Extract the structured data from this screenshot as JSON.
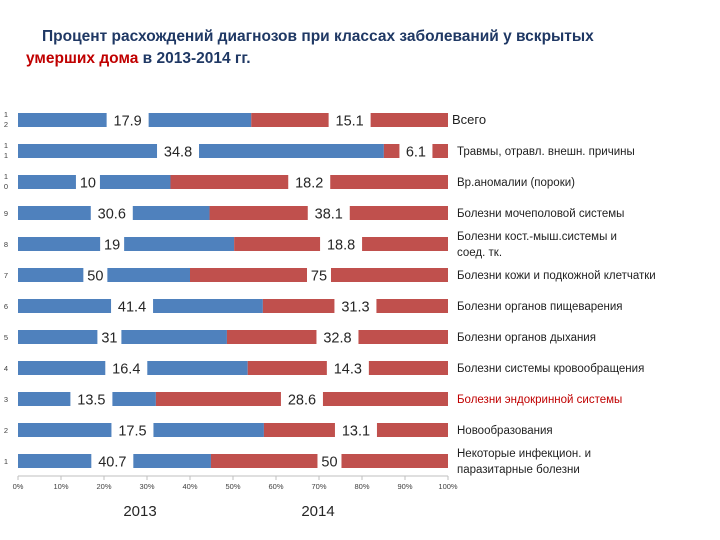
{
  "title": {
    "line1": "Процент расхождений диагнозов при классах заболеваний у вскрытых",
    "line2_red": "умерших дома",
    "line2_rest": " в 2013-2014 гг."
  },
  "chart_data": {
    "type": "bar",
    "orientation": "horizontal",
    "stacked": "percent",
    "categories": [
      "Всего",
      "Травмы, отравл. внешн. причины",
      "Вр.аномалии (пороки)",
      "Болезни мочеполовой системы",
      "Болезни кост.-мыш.системы и соед. тк.",
      "Болезни кожи и подкожной клетчатки",
      "Болезни органов пищеварения",
      "Болезни органов дыхания",
      "Болезни системы кровообращения",
      "Болезни эндокринной системы",
      "Новообразования",
      "Некоторые инфекцион. и паразитарные болезни"
    ],
    "y_ticks": [
      "1 2",
      "1 1",
      "1 0",
      "9",
      "8",
      "7",
      "6",
      "5",
      "4",
      "3",
      "2",
      "1"
    ],
    "series": [
      {
        "name": "2013",
        "color": "#4f81bd",
        "values": [
          17.9,
          34.8,
          10,
          30.6,
          19,
          50,
          41.4,
          31,
          16.4,
          13.5,
          17.5,
          40.7
        ],
        "labels": [
          "17.9",
          "34.8",
          "10",
          "30.6",
          "19",
          "50",
          "41.4",
          "31",
          "16.4",
          "13.5",
          "17.5",
          "40.7"
        ]
      },
      {
        "name": "2014",
        "color": "#c0504d",
        "values": [
          15.1,
          6.1,
          18.2,
          38.1,
          18.8,
          75,
          31.3,
          32.8,
          14.3,
          28.6,
          13.1,
          50
        ],
        "labels": [
          "15.1",
          "6.1",
          "18.2",
          "38.1",
          "18.8",
          "75",
          "31.3",
          "32.8",
          "14.3",
          "28.6",
          "13.1",
          "50"
        ]
      }
    ],
    "highlight_category": "Болезни эндокринной системы",
    "highlight_color": "#c00000",
    "category_color": "#1f1f1f",
    "x_ticks": [
      "0%",
      "10%",
      "20%",
      "30%",
      "40%",
      "50%",
      "60%",
      "70%",
      "80%",
      "90%",
      "100%"
    ],
    "xlim": [
      0,
      100
    ],
    "grid": false,
    "legend": "bottom"
  }
}
